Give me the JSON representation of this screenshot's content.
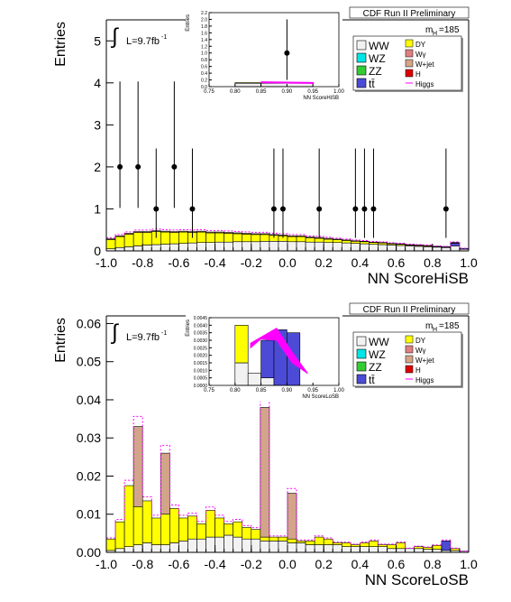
{
  "colors": {
    "WW": "#f2f2f2",
    "WZ": "#00e5e5",
    "ZZ": "#33cc33",
    "tt": "#4b4bd6",
    "DY": "#ffff00",
    "Wg": "#e08080",
    "Wjet": "#d2a58a",
    "H": "#dd0000",
    "Higgs": "#ff00ff"
  },
  "panels": [
    {
      "ylabel": "Entries",
      "xlabel": "NN ScoreHiSB",
      "header": "CDF Run II Preliminary",
      "lumi": "L=9.7fb",
      "lumi_sup": "-1",
      "integral": "∫",
      "mass": "m",
      "mass_sub": "H",
      "mass_val": "=185",
      "legend_left": [
        "WW",
        "WZ",
        "ZZ",
        "tt̄"
      ],
      "legend_right": [
        "DY",
        "Wγ",
        "W+jet",
        "H",
        "Higgs"
      ],
      "inset": {
        "ylabel": "Entries",
        "xlabel": "NN ScoreHiSB"
      }
    },
    {
      "ylabel": "Entries",
      "xlabel": "NN ScoreLoSB",
      "header": "CDF Run II Preliminary",
      "lumi": "L=9.7fb",
      "lumi_sup": "-1",
      "integral": "∫",
      "mass": "m",
      "mass_sub": "H",
      "mass_val": "=185",
      "legend_left": [
        "WW",
        "WZ",
        "ZZ",
        "tt̄"
      ],
      "legend_right": [
        "DY",
        "Wγ",
        "W+jet",
        "H",
        "Higgs"
      ],
      "inset": {
        "ylabel": "Entries",
        "xlabel": "NN ScoreLoSB"
      }
    }
  ],
  "chart_data": [
    {
      "type": "bar",
      "stacked": true,
      "xlabel": "NN ScoreHiSB",
      "ylabel": "Entries",
      "xlim": [
        -1.0,
        1.0
      ],
      "ylim": [
        0,
        5.5
      ],
      "x_ticks": [
        -1.0,
        -0.8,
        -0.6,
        -0.4,
        -0.2,
        -0.0,
        0.2,
        0.4,
        0.6,
        0.8,
        1.0
      ],
      "y_ticks": [
        0,
        1,
        2,
        3,
        4,
        5
      ],
      "bins": 40,
      "series": [
        {
          "name": "WW",
          "values": [
            0.05,
            0.08,
            0.1,
            0.12,
            0.14,
            0.15,
            0.16,
            0.17,
            0.18,
            0.19,
            0.2,
            0.2,
            0.21,
            0.21,
            0.22,
            0.22,
            0.22,
            0.23,
            0.23,
            0.23,
            0.22,
            0.22,
            0.21,
            0.21,
            0.2,
            0.2,
            0.19,
            0.18,
            0.17,
            0.16,
            0.15,
            0.14,
            0.13,
            0.12,
            0.11,
            0.1,
            0.09,
            0.08,
            0.12,
            0.04
          ]
        },
        {
          "name": "tt̄",
          "values": [
            0,
            0,
            0,
            0,
            0,
            0,
            0,
            0,
            0,
            0,
            0,
            0,
            0,
            0,
            0,
            0,
            0,
            0,
            0,
            0,
            0,
            0,
            0,
            0,
            0,
            0,
            0,
            0,
            0,
            0,
            0,
            0,
            0,
            0,
            0,
            0,
            0,
            0,
            0.06,
            0.02
          ]
        },
        {
          "name": "DY",
          "values": [
            0.22,
            0.26,
            0.3,
            0.32,
            0.3,
            0.31,
            0.29,
            0.27,
            0.27,
            0.25,
            0.25,
            0.23,
            0.22,
            0.21,
            0.19,
            0.18,
            0.17,
            0.16,
            0.14,
            0.13,
            0.12,
            0.12,
            0.1,
            0.09,
            0.08,
            0.07,
            0.06,
            0.05,
            0.05,
            0.04,
            0.04,
            0.03,
            0.03,
            0.02,
            0.02,
            0.02,
            0.01,
            0.01,
            0.01,
            0.0
          ]
        },
        {
          "name": "W+jet",
          "values": [
            0.02,
            0.02,
            0.02,
            0.02,
            0.02,
            0.02,
            0.02,
            0.02,
            0.02,
            0.02,
            0.02,
            0.02,
            0.02,
            0.02,
            0.02,
            0.02,
            0.02,
            0.02,
            0.02,
            0.02,
            0.02,
            0.02,
            0.02,
            0.02,
            0.02,
            0.01,
            0.01,
            0.01,
            0.01,
            0.01,
            0.01,
            0.01,
            0.01,
            0.01,
            0.01,
            0.01,
            0.01,
            0.01,
            0.01,
            0.0
          ]
        }
      ],
      "data_points": {
        "x": [
          -0.925,
          -0.825,
          -0.725,
          -0.625,
          -0.525,
          -0.075,
          -0.025,
          0.175,
          0.375,
          0.425,
          0.475,
          0.875
        ],
        "y": [
          2,
          2,
          1,
          2,
          1,
          1,
          1,
          1,
          1,
          1,
          1,
          1
        ]
      },
      "inset": {
        "xlim": [
          0.75,
          1.0
        ],
        "ylim": [
          0,
          2.2
        ],
        "x_ticks": [
          0.75,
          0.8,
          0.85,
          0.9,
          0.95,
          1.0
        ],
        "y_ticks": [
          0,
          0.2,
          0.4,
          0.6,
          0.8,
          1.0,
          1.2,
          1.4,
          1.6,
          1.8,
          2.0,
          2.2
        ],
        "data_point": {
          "x": 0.9,
          "y": 1.0
        }
      }
    },
    {
      "type": "bar",
      "stacked": true,
      "xlabel": "NN ScoreLoSB",
      "ylabel": "Entries",
      "xlim": [
        -1.0,
        1.0
      ],
      "ylim": [
        0,
        0.062
      ],
      "x_ticks": [
        -1.0,
        -0.8,
        -0.6,
        -0.4,
        -0.2,
        -0.0,
        0.2,
        0.4,
        0.6,
        0.8,
        1.0
      ],
      "y_ticks": [
        0,
        0.01,
        0.02,
        0.03,
        0.04,
        0.05,
        0.06
      ],
      "bins": 40,
      "series": [
        {
          "name": "WW",
          "values": [
            0.0005,
            0.001,
            0.0015,
            0.002,
            0.0025,
            0.002,
            0.002,
            0.0025,
            0.003,
            0.0035,
            0.0035,
            0.004,
            0.004,
            0.0045,
            0.004,
            0.0035,
            0.0035,
            0.003,
            0.003,
            0.003,
            0.0025,
            0.0025,
            0.002,
            0.002,
            0.002,
            0.002,
            0.0015,
            0.0015,
            0.0015,
            0.0015,
            0.0015,
            0.001,
            0.001,
            0.001,
            0.001,
            0.0008,
            0.0008,
            0.0005,
            0.0005,
            0.0003
          ]
        },
        {
          "name": "tt̄",
          "values": [
            0,
            0,
            0,
            0,
            0,
            0,
            0,
            0,
            0,
            0,
            0,
            0,
            0,
            0,
            0,
            0,
            0,
            0,
            0,
            0,
            0,
            0,
            0,
            0,
            0,
            0,
            0,
            0,
            0,
            0,
            0,
            0,
            0,
            0,
            0,
            0,
            0,
            0.0025,
            0,
            0
          ]
        },
        {
          "name": "DY",
          "values": [
            0.003,
            0.007,
            0.016,
            0.01,
            0.011,
            0.007,
            0.008,
            0.009,
            0.006,
            0.006,
            0.004,
            0.007,
            0.005,
            0.003,
            0.004,
            0.003,
            0.0025,
            0.001,
            0.001,
            0.001,
            0.001,
            0.0005,
            0.001,
            0.002,
            0.0015,
            0.0005,
            0.001,
            0.0005,
            0.001,
            0.0015,
            0.0005,
            0.001,
            0.0015,
            0.0,
            0.0005,
            0.0005,
            0.001,
            0.0,
            0.0005,
            0.0
          ]
        },
        {
          "name": "Wγ",
          "values": [
            0,
            0,
            0,
            0,
            0,
            0,
            0,
            0,
            0,
            0,
            0,
            0,
            0,
            0,
            0,
            0,
            0,
            0,
            0,
            0,
            0,
            0,
            0,
            0,
            0,
            0,
            0,
            0,
            0,
            0,
            0,
            0,
            0,
            0,
            0,
            0,
            0,
            0,
            0,
            0
          ]
        },
        {
          "name": "W+jet",
          "values": [
            0,
            0,
            0,
            0.021,
            0,
            0,
            0.016,
            0,
            0,
            0,
            0,
            0,
            0,
            0,
            0,
            0,
            0,
            0.034,
            0,
            0,
            0.012,
            0,
            0,
            0,
            0,
            0,
            0,
            0,
            0,
            0,
            0,
            0,
            0,
            0,
            0,
            0,
            0,
            0,
            0,
            0
          ]
        }
      ],
      "inset": {
        "xlim": [
          0.75,
          1.0
        ],
        "ylim": [
          0,
          0.0045
        ],
        "x_ticks": [
          0.75,
          0.8,
          0.85,
          0.9,
          0.95,
          1.0
        ],
        "y_ticks": [
          0,
          0.0005,
          0.001,
          0.0015,
          0.002,
          0.0025,
          0.003,
          0.0035,
          0.004,
          0.0045
        ],
        "stack": [
          {
            "x0": 0.8,
            "x1": 0.825,
            "ww": 0.0015,
            "dy": 0.0025,
            "tt": 0
          },
          {
            "x0": 0.825,
            "x1": 0.85,
            "ww": 0.0008,
            "dy": 0.0,
            "tt": 0.0
          },
          {
            "x0": 0.85,
            "x1": 0.875,
            "ww": 0.0005,
            "dy": 0.0,
            "tt": 0.0025
          },
          {
            "x0": 0.875,
            "x1": 0.9,
            "ww": 0.0,
            "dy": 0.0,
            "tt": 0.0037
          },
          {
            "x0": 0.9,
            "x1": 0.925,
            "ww": 0.0,
            "dy": 0.0,
            "tt": 0.0035
          },
          {
            "x0": 0.925,
            "x1": 0.95,
            "ww": 0.0,
            "dy": 0.0,
            "tt": 0.0
          }
        ]
      }
    }
  ]
}
